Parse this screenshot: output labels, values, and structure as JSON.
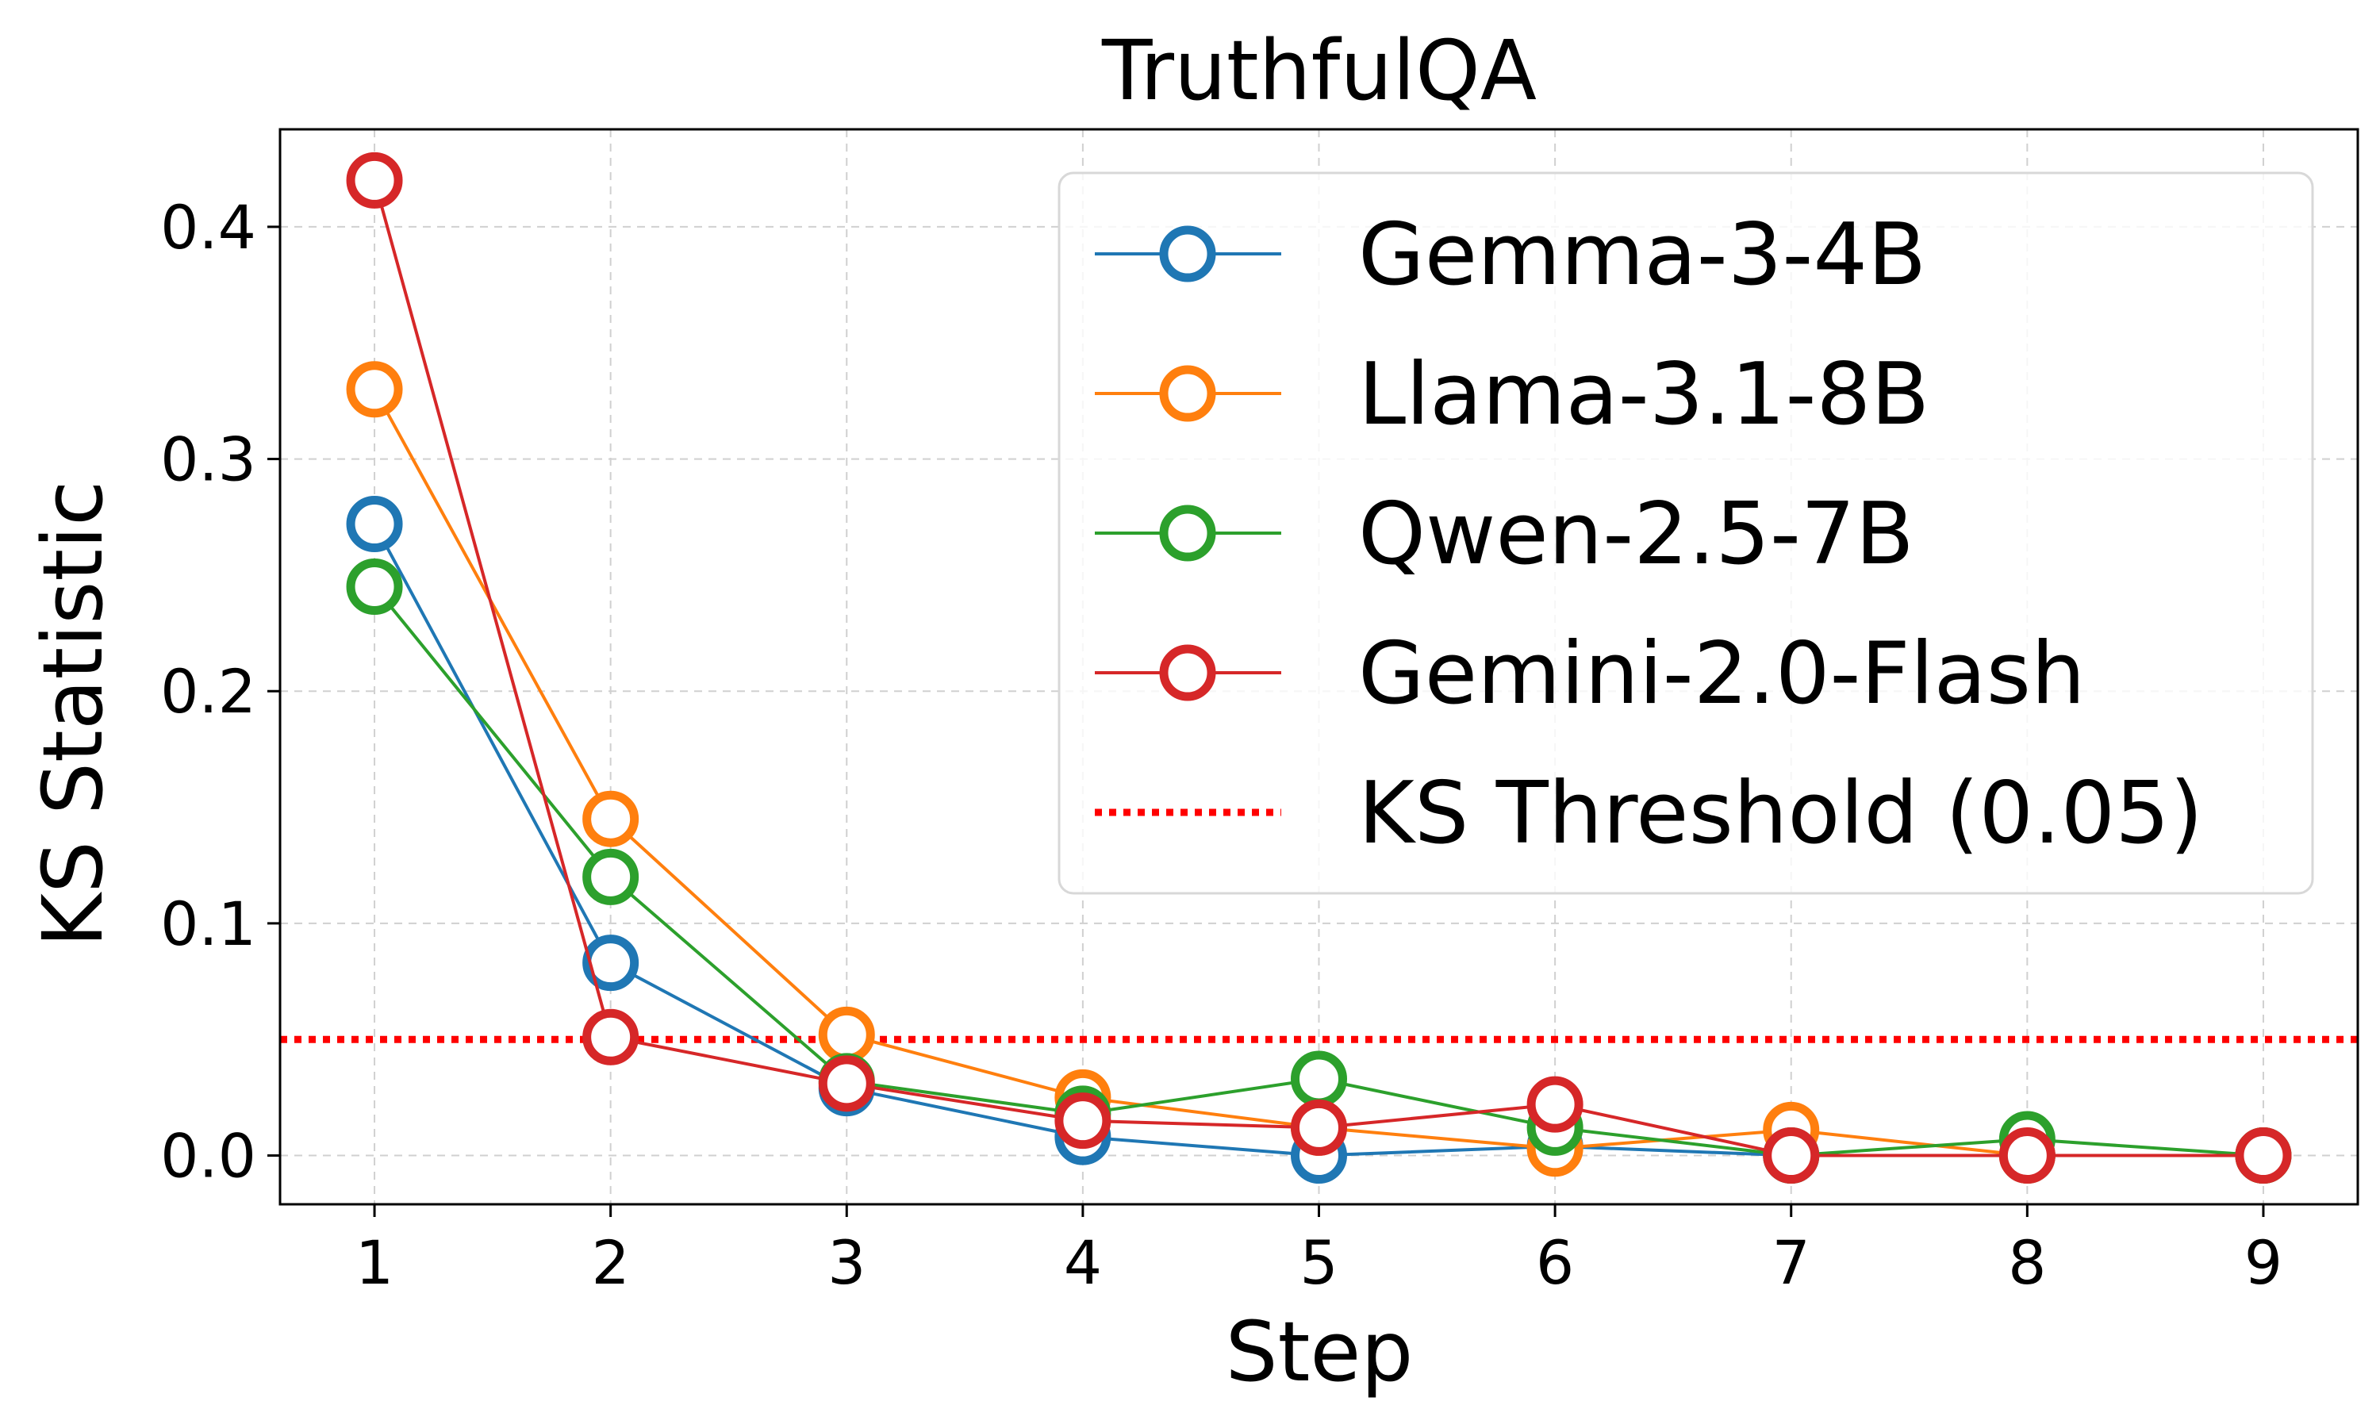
{
  "chart_data": {
    "type": "line",
    "title": "TruthfulQA",
    "xlabel": "Step",
    "ylabel": "KS Statistic",
    "x": [
      1,
      2,
      3,
      4,
      5,
      6,
      7,
      8,
      9
    ],
    "xlim": [
      0.6,
      9.4
    ],
    "ylim": [
      -0.021,
      0.442
    ],
    "xticks": [
      "1",
      "2",
      "3",
      "4",
      "5",
      "6",
      "7",
      "8",
      "9"
    ],
    "yticks": [
      "0.0",
      "0.1",
      "0.2",
      "0.3",
      "0.4"
    ],
    "grid": true,
    "legend_position": "top-right",
    "series": [
      {
        "name": "Gemma-3-4B",
        "color": "#1f77b4",
        "values": [
          0.272,
          0.083,
          0.029,
          0.008,
          0.0,
          0.004,
          0.0,
          0.0,
          0.0
        ]
      },
      {
        "name": "Llama-3.1-8B",
        "color": "#ff7f0e",
        "values": [
          0.33,
          0.145,
          0.052,
          0.025,
          0.012,
          0.003,
          0.011,
          0.0,
          0.0
        ]
      },
      {
        "name": "Qwen-2.5-7B",
        "color": "#2ca02c",
        "values": [
          0.245,
          0.12,
          0.032,
          0.018,
          0.033,
          0.012,
          0.0,
          0.007,
          0.0
        ]
      },
      {
        "name": "Gemini-2.0-Flash",
        "color": "#d62728",
        "values": [
          0.42,
          0.051,
          0.031,
          0.015,
          0.012,
          0.022,
          0.0,
          0.0,
          0.0
        ]
      }
    ],
    "threshold": {
      "name": "KS Threshold (0.05)",
      "value": 0.05,
      "color": "#ff0000",
      "style": "dotted"
    }
  }
}
